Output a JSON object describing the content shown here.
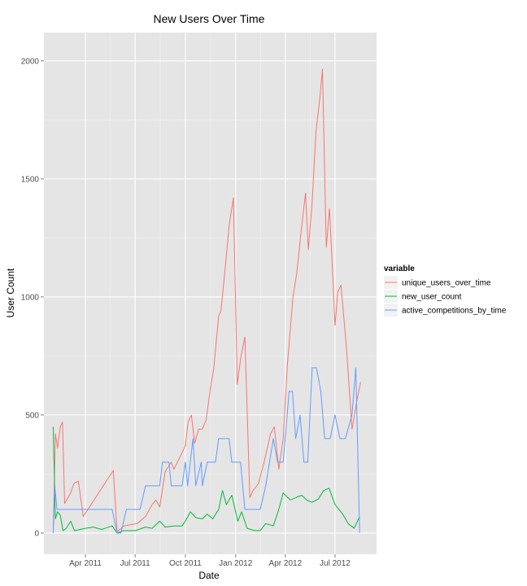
{
  "chart_data": {
    "type": "line",
    "title": "New Users Over Time",
    "xlabel": "Date",
    "ylabel": "User Count",
    "x_ticks": [
      "Apr 2011",
      "Jul 2011",
      "Oct 2011",
      "Jan 2012",
      "Apr 2012",
      "Jul 2012"
    ],
    "y_ticks": [
      "0",
      "500",
      "1000",
      "1500",
      "2000"
    ],
    "xlim": [
      "2011-01-15",
      "2012-09-15"
    ],
    "ylim": [
      -90,
      2120
    ],
    "grid": true,
    "legend": {
      "title": "variable",
      "position": "right"
    },
    "series": [
      {
        "name": "unique_users_over_time",
        "color": "#F8766D",
        "points": [
          [
            "2011-02-01",
            0
          ],
          [
            "2011-02-05",
            420
          ],
          [
            "2011-02-09",
            360
          ],
          [
            "2011-02-14",
            450
          ],
          [
            "2011-02-18",
            470
          ],
          [
            "2011-02-22",
            125
          ],
          [
            "2011-03-05",
            170
          ],
          [
            "2011-03-11",
            210
          ],
          [
            "2011-03-19",
            220
          ],
          [
            "2011-03-28",
            70
          ],
          [
            "2011-05-22",
            265
          ],
          [
            "2011-05-29",
            5
          ],
          [
            "2011-06-10",
            30
          ],
          [
            "2011-07-05",
            40
          ],
          [
            "2011-07-20",
            70
          ],
          [
            "2011-08-01",
            120
          ],
          [
            "2011-08-08",
            140
          ],
          [
            "2011-08-15",
            110
          ],
          [
            "2011-08-25",
            260
          ],
          [
            "2011-09-05",
            300
          ],
          [
            "2011-09-10",
            270
          ],
          [
            "2011-09-25",
            340
          ],
          [
            "2011-10-01",
            370
          ],
          [
            "2011-10-06",
            470
          ],
          [
            "2011-10-12",
            500
          ],
          [
            "2011-10-18",
            380
          ],
          [
            "2011-10-25",
            440
          ],
          [
            "2011-11-01",
            440
          ],
          [
            "2011-11-08",
            480
          ],
          [
            "2011-11-15",
            600
          ],
          [
            "2011-11-22",
            700
          ],
          [
            "2011-12-01",
            920
          ],
          [
            "2011-12-05",
            940
          ],
          [
            "2011-12-12",
            1100
          ],
          [
            "2011-12-20",
            1300
          ],
          [
            "2011-12-28",
            1420
          ],
          [
            "2012-01-04",
            630
          ],
          [
            "2012-01-11",
            750
          ],
          [
            "2012-01-18",
            830
          ],
          [
            "2012-01-27",
            150
          ],
          [
            "2012-02-02",
            180
          ],
          [
            "2012-02-12",
            210
          ],
          [
            "2012-02-22",
            300
          ],
          [
            "2012-03-05",
            420
          ],
          [
            "2012-03-12",
            450
          ],
          [
            "2012-03-20",
            270
          ],
          [
            "2012-03-28",
            400
          ],
          [
            "2012-04-05",
            720
          ],
          [
            "2012-04-15",
            1000
          ],
          [
            "2012-04-22",
            1100
          ],
          [
            "2012-05-01",
            1300
          ],
          [
            "2012-05-08",
            1440
          ],
          [
            "2012-05-13",
            1200
          ],
          [
            "2012-05-20",
            1400
          ],
          [
            "2012-05-27",
            1700
          ],
          [
            "2012-06-03",
            1840
          ],
          [
            "2012-06-08",
            1965
          ],
          [
            "2012-06-15",
            1210
          ],
          [
            "2012-06-21",
            1375
          ],
          [
            "2012-07-01",
            880
          ],
          [
            "2012-07-06",
            1020
          ],
          [
            "2012-07-12",
            1050
          ],
          [
            "2012-07-22",
            780
          ],
          [
            "2012-08-01",
            440
          ],
          [
            "2012-08-10",
            560
          ],
          [
            "2012-08-17",
            640
          ]
        ]
      },
      {
        "name": "new_user_count",
        "color": "#00BA38",
        "points": [
          [
            "2011-02-01",
            450
          ],
          [
            "2011-02-05",
            60
          ],
          [
            "2011-02-09",
            90
          ],
          [
            "2011-02-14",
            75
          ],
          [
            "2011-02-19",
            10
          ],
          [
            "2011-02-25",
            20
          ],
          [
            "2011-03-05",
            50
          ],
          [
            "2011-03-12",
            10
          ],
          [
            "2011-04-01",
            20
          ],
          [
            "2011-04-15",
            25
          ],
          [
            "2011-05-01",
            15
          ],
          [
            "2011-05-20",
            30
          ],
          [
            "2011-05-29",
            0
          ],
          [
            "2011-06-10",
            10
          ],
          [
            "2011-07-01",
            10
          ],
          [
            "2011-07-20",
            25
          ],
          [
            "2011-08-01",
            20
          ],
          [
            "2011-08-15",
            50
          ],
          [
            "2011-08-25",
            25
          ],
          [
            "2011-09-10",
            30
          ],
          [
            "2011-09-25",
            30
          ],
          [
            "2011-10-01",
            50
          ],
          [
            "2011-10-10",
            90
          ],
          [
            "2011-10-20",
            65
          ],
          [
            "2011-11-01",
            60
          ],
          [
            "2011-11-10",
            80
          ],
          [
            "2011-11-20",
            60
          ],
          [
            "2011-12-01",
            100
          ],
          [
            "2011-12-08",
            180
          ],
          [
            "2011-12-15",
            120
          ],
          [
            "2011-12-25",
            160
          ],
          [
            "2012-01-05",
            50
          ],
          [
            "2012-01-12",
            90
          ],
          [
            "2012-01-22",
            20
          ],
          [
            "2012-02-05",
            10
          ],
          [
            "2012-02-15",
            10
          ],
          [
            "2012-02-25",
            40
          ],
          [
            "2012-03-10",
            30
          ],
          [
            "2012-03-20",
            100
          ],
          [
            "2012-03-28",
            170
          ],
          [
            "2012-04-10",
            140
          ],
          [
            "2012-04-20",
            150
          ],
          [
            "2012-05-01",
            160
          ],
          [
            "2012-05-10",
            140
          ],
          [
            "2012-05-20",
            130
          ],
          [
            "2012-06-01",
            145
          ],
          [
            "2012-06-10",
            180
          ],
          [
            "2012-06-20",
            190
          ],
          [
            "2012-07-01",
            120
          ],
          [
            "2012-07-15",
            80
          ],
          [
            "2012-07-25",
            40
          ],
          [
            "2012-08-05",
            20
          ],
          [
            "2012-08-15",
            70
          ]
        ]
      },
      {
        "name": "active_competitions_by_time",
        "color": "#619CFF",
        "points": [
          [
            "2011-02-01",
            0
          ],
          [
            "2011-02-04",
            200
          ],
          [
            "2011-02-08",
            100
          ],
          [
            "2011-05-20",
            100
          ],
          [
            "2011-05-29",
            0
          ],
          [
            "2011-06-05",
            0
          ],
          [
            "2011-06-15",
            100
          ],
          [
            "2011-07-10",
            100
          ],
          [
            "2011-07-20",
            200
          ],
          [
            "2011-08-15",
            200
          ],
          [
            "2011-08-20",
            300
          ],
          [
            "2011-09-01",
            300
          ],
          [
            "2011-09-05",
            200
          ],
          [
            "2011-09-25",
            200
          ],
          [
            "2011-10-01",
            300
          ],
          [
            "2011-10-05",
            200
          ],
          [
            "2011-10-15",
            400
          ],
          [
            "2011-10-20",
            200
          ],
          [
            "2011-10-30",
            300
          ],
          [
            "2011-11-01",
            200
          ],
          [
            "2011-11-10",
            300
          ],
          [
            "2011-11-25",
            300
          ],
          [
            "2011-12-01",
            400
          ],
          [
            "2011-12-20",
            400
          ],
          [
            "2011-12-25",
            300
          ],
          [
            "2012-01-10",
            300
          ],
          [
            "2012-01-18",
            100
          ],
          [
            "2012-02-15",
            100
          ],
          [
            "2012-02-25",
            200
          ],
          [
            "2012-03-10",
            400
          ],
          [
            "2012-03-18",
            300
          ],
          [
            "2012-03-28",
            300
          ],
          [
            "2012-04-08",
            600
          ],
          [
            "2012-04-14",
            600
          ],
          [
            "2012-04-20",
            400
          ],
          [
            "2012-04-28",
            500
          ],
          [
            "2012-05-05",
            300
          ],
          [
            "2012-05-12",
            300
          ],
          [
            "2012-05-20",
            700
          ],
          [
            "2012-05-28",
            700
          ],
          [
            "2012-06-05",
            600
          ],
          [
            "2012-06-12",
            400
          ],
          [
            "2012-06-22",
            400
          ],
          [
            "2012-07-01",
            500
          ],
          [
            "2012-07-10",
            400
          ],
          [
            "2012-07-20",
            400
          ],
          [
            "2012-08-01",
            500
          ],
          [
            "2012-08-08",
            700
          ],
          [
            "2012-08-12",
            300
          ],
          [
            "2012-08-15",
            0
          ]
        ]
      }
    ]
  }
}
